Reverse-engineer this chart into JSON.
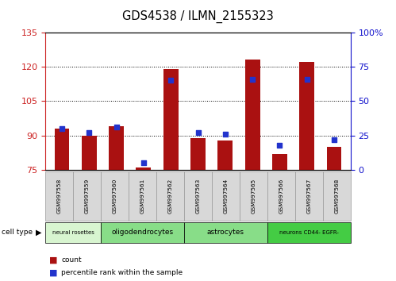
{
  "title": "GDS4538 / ILMN_2155323",
  "samples": [
    "GSM997558",
    "GSM997559",
    "GSM997560",
    "GSM997561",
    "GSM997562",
    "GSM997563",
    "GSM997564",
    "GSM997565",
    "GSM997566",
    "GSM997567",
    "GSM997568"
  ],
  "counts": [
    93,
    90,
    94,
    76,
    119,
    89,
    88,
    123,
    82,
    122,
    85
  ],
  "percentiles": [
    30,
    27,
    31,
    5,
    65,
    27,
    26,
    66,
    18,
    66,
    22
  ],
  "ylim_left": [
    75,
    135
  ],
  "ylim_right": [
    0,
    100
  ],
  "yticks_left": [
    75,
    90,
    105,
    120,
    135
  ],
  "yticks_right": [
    0,
    25,
    50,
    75,
    100
  ],
  "cell_types": [
    {
      "label": "neural rosettes",
      "start": 0,
      "end": 2,
      "color": "#d8f5d0"
    },
    {
      "label": "oligodendrocytes",
      "start": 2,
      "end": 5,
      "color": "#88dd88"
    },
    {
      "label": "astrocytes",
      "start": 5,
      "end": 8,
      "color": "#88dd88"
    },
    {
      "label": "neurons CD44- EGFR-",
      "start": 8,
      "end": 11,
      "color": "#44cc44"
    }
  ],
  "bar_color": "#aa1111",
  "dot_color": "#2233cc",
  "bg_color": "#ffffff",
  "plot_bg": "#ffffff",
  "left_tick_color": "#cc2222",
  "right_tick_color": "#1111cc",
  "sample_box_color": "#d8d8d8",
  "sample_box_edge": "#999999"
}
